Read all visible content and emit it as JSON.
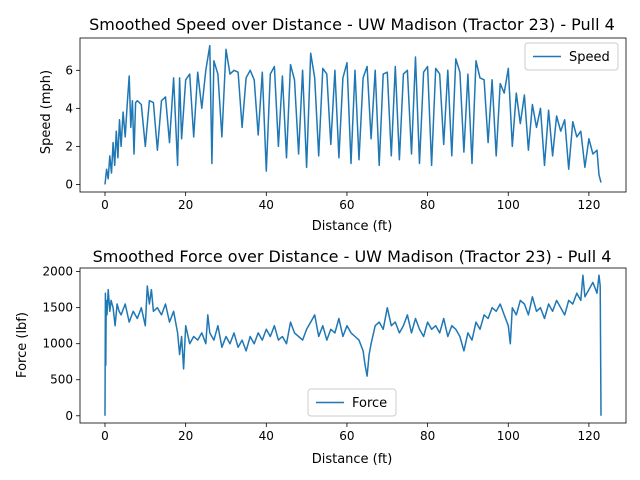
{
  "chart_data": [
    {
      "type": "line",
      "title": "Smoothed Speed over Distance - UW Madison (Tractor 23) - Pull 4",
      "xlabel": "Distance (ft)",
      "ylabel": "Speed (mph)",
      "xlim": [
        -6.2,
        129.2
      ],
      "ylim": [
        -0.4,
        7.7
      ],
      "xticks": [
        0,
        20,
        40,
        60,
        80,
        100,
        120
      ],
      "yticks": [
        0,
        2,
        4,
        6
      ],
      "grid": false,
      "legend": "upper right",
      "series": [
        {
          "name": "Speed",
          "color": "#1f77b4",
          "x": [
            0,
            0.4,
            0.8,
            1.2,
            1.6,
            2.0,
            2.4,
            2.8,
            3.2,
            3.6,
            4.0,
            4.5,
            5.0,
            5.5,
            6.0,
            6.4,
            6.8,
            7.2,
            7.6,
            8.0,
            9.0,
            10.0,
            11.0,
            12.0,
            13.0,
            14.0,
            15.0,
            16.0,
            17.0,
            18.0,
            18.5,
            19.0,
            20.0,
            21.0,
            22.0,
            23.0,
            24.0,
            25.0,
            26.0,
            26.5,
            27.0,
            28.0,
            29.0,
            30.0,
            31.0,
            32.0,
            33.0,
            34.0,
            35.0,
            36.0,
            37.0,
            38.0,
            39.0,
            40.0,
            41.0,
            42.0,
            43.0,
            44.0,
            45.0,
            46.0,
            47.0,
            48.0,
            49.0,
            50.0,
            51.0,
            52.0,
            53.0,
            54.0,
            55.0,
            56.0,
            57.0,
            58.0,
            59.0,
            60.0,
            61.0,
            62.0,
            63.0,
            64.0,
            65.0,
            66.0,
            67.0,
            68.0,
            69.0,
            70.0,
            71.0,
            72.0,
            73.0,
            74.0,
            75.0,
            76.0,
            77.0,
            78.0,
            79.0,
            80.0,
            81.0,
            82.0,
            83.0,
            84.0,
            85.0,
            86.0,
            87.0,
            88.0,
            89.0,
            90.0,
            91.0,
            92.0,
            93.0,
            94.0,
            95.0,
            96.0,
            97.0,
            98.0,
            99.0,
            100.0,
            101.0,
            102.0,
            103.0,
            104.0,
            105.0,
            106.0,
            107.0,
            108.0,
            109.0,
            110.0,
            111.0,
            112.0,
            113.0,
            114.0,
            115.0,
            116.0,
            117.0,
            118.0,
            119.0,
            120.0,
            121.0,
            122.0,
            122.5,
            123.0
          ],
          "values": [
            0.0,
            0.8,
            0.3,
            1.5,
            0.6,
            2.2,
            1.0,
            2.8,
            1.4,
            3.4,
            2.0,
            3.8,
            2.5,
            4.2,
            5.7,
            3.0,
            4.4,
            1.6,
            4.3,
            4.4,
            4.2,
            2.0,
            4.4,
            4.3,
            1.8,
            4.4,
            4.6,
            2.2,
            5.6,
            1.0,
            5.6,
            2.4,
            5.5,
            5.8,
            2.5,
            5.9,
            4.0,
            6.0,
            7.3,
            1.1,
            6.5,
            5.8,
            2.5,
            7.1,
            5.8,
            6.0,
            5.9,
            3.0,
            5.6,
            6.0,
            5.5,
            2.6,
            5.9,
            0.7,
            5.8,
            6.2,
            2.0,
            5.7,
            1.4,
            6.3,
            5.5,
            1.6,
            6.0,
            0.9,
            6.9,
            5.6,
            1.5,
            6.1,
            5.8,
            2.1,
            6.0,
            1.4,
            5.6,
            6.4,
            1.1,
            6.0,
            1.3,
            5.6,
            6.2,
            2.4,
            6.0,
            1.0,
            5.8,
            5.9,
            1.5,
            6.2,
            1.3,
            5.8,
            6.0,
            1.6,
            6.7,
            1.1,
            5.9,
            6.2,
            1.0,
            6.1,
            5.8,
            2.1,
            6.0,
            1.5,
            6.6,
            5.9,
            1.7,
            5.8,
            1.1,
            6.5,
            5.6,
            5.5,
            2.2,
            5.5,
            1.5,
            5.3,
            4.8,
            6.1,
            2.0,
            4.8,
            3.2,
            4.7,
            1.8,
            4.2,
            3.0,
            4.0,
            1.0,
            3.9,
            1.5,
            3.6,
            2.8,
            3.4,
            0.8,
            3.3,
            2.5,
            2.8,
            0.9,
            2.4,
            1.6,
            1.8,
            0.5,
            0.1
          ],
          "max_value": 7.3
        }
      ]
    },
    {
      "type": "line",
      "title": "Smoothed Force over Distance - UW Madison (Tractor 23) - Pull 4",
      "xlabel": "Distance (ft)",
      "ylabel": "Force (lbf)",
      "xlim": [
        -6.2,
        129.2
      ],
      "ylim": [
        -100,
        2050
      ],
      "xticks": [
        0,
        20,
        40,
        60,
        80,
        100,
        120
      ],
      "yticks": [
        0,
        500,
        1000,
        1500,
        2000
      ],
      "grid": false,
      "legend": "lower center",
      "series": [
        {
          "name": "Force",
          "color": "#1f77b4",
          "x": [
            0,
            0.1,
            0.2,
            0.3,
            0.5,
            0.8,
            1.2,
            1.5,
            2.0,
            2.5,
            3.0,
            3.5,
            4.0,
            5.0,
            6.0,
            7.0,
            8.0,
            9.0,
            10.0,
            10.5,
            11.0,
            11.5,
            12.0,
            13.0,
            14.0,
            15.0,
            16.0,
            17.0,
            18.0,
            18.5,
            19.0,
            19.5,
            20.0,
            21.0,
            22.0,
            23.0,
            24.0,
            25.0,
            25.5,
            26.0,
            27.0,
            28.0,
            29.0,
            30.0,
            31.0,
            32.0,
            33.0,
            34.0,
            35.0,
            36.0,
            37.0,
            38.0,
            39.0,
            40.0,
            41.0,
            42.0,
            43.0,
            44.0,
            45.0,
            46.0,
            47.0,
            48.0,
            49.0,
            50.0,
            51.0,
            52.0,
            53.0,
            54.0,
            55.0,
            56.0,
            57.0,
            58.0,
            59.0,
            60.0,
            61.0,
            62.0,
            63.0,
            64.0,
            64.5,
            65.0,
            65.5,
            66.0,
            67.0,
            68.0,
            69.0,
            70.0,
            71.0,
            72.0,
            73.0,
            74.0,
            75.0,
            76.0,
            77.0,
            78.0,
            79.0,
            80.0,
            81.0,
            82.0,
            83.0,
            84.0,
            85.0,
            86.0,
            87.0,
            88.0,
            89.0,
            90.0,
            91.0,
            92.0,
            93.0,
            94.0,
            95.0,
            96.0,
            97.0,
            98.0,
            99.0,
            100.0,
            100.5,
            101.0,
            102.0,
            103.0,
            104.0,
            105.0,
            106.0,
            107.0,
            108.0,
            109.0,
            110.0,
            111.0,
            112.0,
            113.0,
            114.0,
            115.0,
            116.0,
            117.0,
            118.0,
            118.5,
            119.0,
            120.0,
            121.0,
            122.0,
            122.5,
            122.8,
            123.0
          ],
          "values": [
            0,
            1700,
            700,
            1600,
            1400,
            1750,
            1450,
            1600,
            1500,
            1250,
            1550,
            1450,
            1400,
            1550,
            1300,
            1450,
            1350,
            1500,
            1250,
            1800,
            1550,
            1750,
            1450,
            1500,
            1400,
            1550,
            1300,
            1450,
            1150,
            850,
            1100,
            650,
            1250,
            1000,
            1100,
            1050,
            1150,
            1000,
            1400,
            1150,
            1050,
            1250,
            950,
            1100,
            1000,
            1150,
            950,
            1050,
            900,
            1100,
            1000,
            1150,
            1050,
            1200,
            1100,
            1250,
            1050,
            1100,
            1000,
            1300,
            1150,
            1100,
            1050,
            1200,
            1300,
            1400,
            1100,
            1250,
            1050,
            1200,
            1150,
            1350,
            1100,
            1250,
            1150,
            1100,
            1050,
            900,
            700,
            550,
            850,
            1000,
            1250,
            1300,
            1200,
            1500,
            1250,
            1300,
            1150,
            1250,
            1400,
            1150,
            1350,
            1200,
            1100,
            1300,
            1200,
            1250,
            1150,
            1350,
            1100,
            1250,
            1200,
            1100,
            900,
            1150,
            1050,
            1300,
            1200,
            1400,
            1350,
            1500,
            1450,
            1550,
            1400,
            1250,
            1000,
            1500,
            1400,
            1600,
            1550,
            1400,
            1650,
            1450,
            1500,
            1350,
            1550,
            1450,
            1600,
            1500,
            1400,
            1600,
            1550,
            1700,
            1600,
            1950,
            1650,
            1750,
            1850,
            1700,
            1950,
            1800,
            0
          ],
          "max_value": 1950
        }
      ]
    }
  ]
}
